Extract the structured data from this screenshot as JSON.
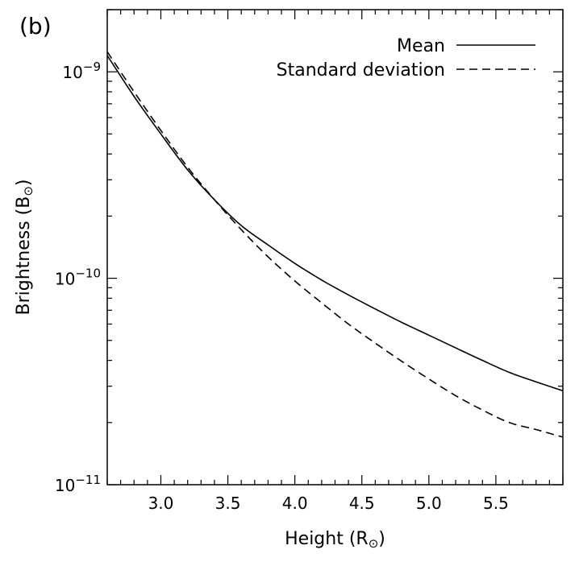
{
  "panel_label": "(b)",
  "chart_data": {
    "type": "line",
    "title": "",
    "xlabel": {
      "prefix": "Height (R",
      "sub": "⊙",
      "suffix": ")"
    },
    "ylabel": {
      "prefix": "Brightness (B",
      "sub": "⊙",
      "suffix": ")"
    },
    "xlim": [
      2.6,
      6.0
    ],
    "ylim": [
      1e-11,
      2e-09
    ],
    "yscale": "log",
    "grid": false,
    "legend_position": "top-right",
    "x_ticks": [
      3.0,
      3.5,
      4.0,
      4.5,
      5.0,
      5.5
    ],
    "x_tick_labels": [
      "3.0",
      "3.5",
      "4.0",
      "4.5",
      "5.0",
      "5.5"
    ],
    "y_ticks": [
      {
        "value": 1e-09,
        "base": "10",
        "exp": "−9"
      },
      {
        "value": 1e-10,
        "base": "10",
        "exp": "−10"
      },
      {
        "value": 1e-11,
        "base": "10",
        "exp": "−11"
      }
    ],
    "x": [
      2.6,
      2.8,
      3.0,
      3.2,
      3.4,
      3.6,
      3.8,
      4.0,
      4.2,
      4.4,
      4.6,
      4.8,
      5.0,
      5.2,
      5.4,
      5.6,
      5.8,
      6.0
    ],
    "series": [
      {
        "name": "Mean",
        "style": "solid",
        "values": [
          1.2e-09,
          7.6e-10,
          5e-10,
          3.35e-10,
          2.4e-10,
          1.8e-10,
          1.45e-10,
          1.18e-10,
          9.8e-11,
          8.3e-11,
          7.1e-11,
          6.1e-11,
          5.3e-11,
          4.6e-11,
          4e-11,
          3.5e-11,
          3.15e-11,
          2.85e-11
        ]
      },
      {
        "name": "Standard deviation",
        "style": "dashed",
        "values": [
          1.25e-09,
          8e-10,
          5.2e-10,
          3.45e-10,
          2.4e-10,
          1.72e-10,
          1.27e-10,
          9.7e-11,
          7.6e-11,
          6e-11,
          4.85e-11,
          3.95e-11,
          3.25e-11,
          2.7e-11,
          2.3e-11,
          2e-11,
          1.85e-11,
          1.7e-11
        ]
      }
    ]
  }
}
